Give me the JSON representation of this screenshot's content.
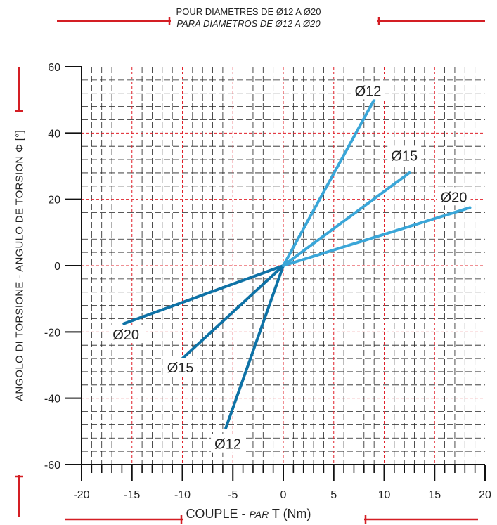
{
  "title": {
    "line1": "POUR DIAMETRES DE Ø12 A Ø20",
    "line2": "PARA DIAMETROS DE Ø12 A Ø20"
  },
  "xlabel": {
    "main": "COUPLE - ",
    "italic": "PAR",
    "rest": " T (Nm)"
  },
  "ylabel": "ANGOLO DI TORSIONE - ANGULO DE TORSION Φ [°]",
  "colors": {
    "grid_major": "#e0202a",
    "grid_minor": "#222222",
    "axis": "#111111",
    "accent_red": "#d41e24",
    "series_top": "#3aa6d8",
    "series_bottom": "#0e72a6"
  },
  "chart_data": {
    "type": "line",
    "xlim": [
      -20,
      20
    ],
    "ylim": [
      -60,
      60
    ],
    "x_ticks": [
      -20,
      -15,
      -10,
      -5,
      0,
      5,
      10,
      15,
      20
    ],
    "y_ticks": [
      -60,
      -40,
      -20,
      0,
      20,
      40,
      60
    ],
    "grid": true,
    "series": [
      {
        "name": "Ø12",
        "x": [
          -5.7,
          9.0
        ],
        "y": [
          -49,
          50
        ]
      },
      {
        "name": "Ø15",
        "x": [
          -10.0,
          12.5
        ],
        "y": [
          -28,
          28
        ]
      },
      {
        "name": "Ø20",
        "x": [
          -15.8,
          18.5
        ],
        "y": [
          -17.5,
          17.5
        ]
      }
    ]
  }
}
